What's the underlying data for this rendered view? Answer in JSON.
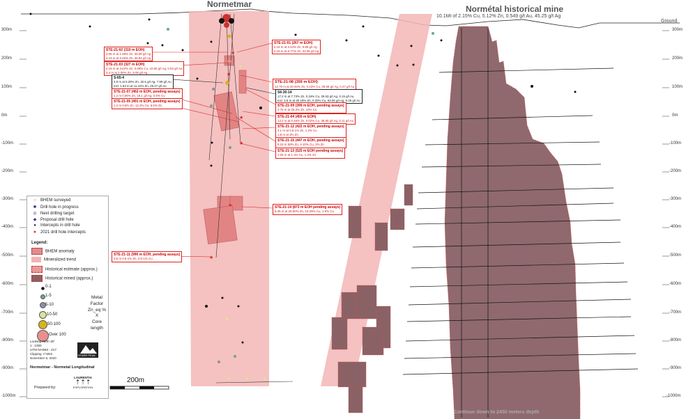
{
  "titles": {
    "main_left": "Normetmar",
    "main_right": "Normétal historical mine",
    "right_sub": "10.1Mt of 2.15% Cu, 5.12% Zn, 0.549 g/t Au, 45.25 g/t Ag",
    "ground": "Ground",
    "bottom_note": "Continue down to 2450 meters depth"
  },
  "depth_labels_left": [
    "300m",
    "200m",
    "100m",
    "0m",
    "-100m",
    "-200m",
    "-300m",
    "-400m",
    "-500m",
    "-600m",
    "-700m",
    "-800m",
    "-900m",
    "-1000m"
  ],
  "depth_labels_right": [
    "300m",
    "200m",
    "100m",
    "0m",
    "-100m",
    "-200m",
    "-300m",
    "-400m",
    "-500m",
    "-600m",
    "-700m",
    "-800m",
    "-900m",
    "-1000m"
  ],
  "callouts": [
    {
      "id": "ste-21-02",
      "title": "STE-21-02 (319 m EOH)",
      "lines": [
        "3.05 m at 1.08% Zn, 36.08 g/t Ag",
        "4.15 m at 3.45% Zn, 35.84 g/t Ag"
      ]
    },
    {
      "id": "ste-21-01",
      "title": "STE-21-01 (267 m EOH)",
      "lines": [
        "4.15 m at 3.43% Zn, 9.88 g/t Ag",
        "4.15 m at 8.77% Zn, 32.05 g/t Ag"
      ]
    },
    {
      "id": "ste-21-03",
      "title": "STE-21-03 (327 m EOH)",
      "lines": [
        "4.15 m at 3.62% Zn, 0.08% Cu, 10.60 g/t Ag, 0.53 g/t Au",
        "3.3 m at 2.00% Zn, 8.05 g/t Ag"
      ]
    },
    {
      "id": "s-65-4",
      "title": "S-65-4",
      "lines": [
        "4.9 m at 5.28% Zn, 32.6 g/t Ag, 7.99 g/t Au",
        "Incl. 1.53 m at 11.41% Zn, 25.27 g/t Au"
      ]
    },
    {
      "id": "ste-21-08",
      "title": "STE-21-08 (359 m EOH)",
      "lines": [
        "12.76 m at 20.94% Zn, 0.43% Cu, 28.56 g/t Ag, 0.27 g/t Au"
      ]
    },
    {
      "id": "ste-21-07",
      "title": "STE-21-07 (462 m EOH, pending assays)",
      "lines": [
        "1.2 m 0.06% Zn, 18.1 g/t Ag, 0.6% Cu"
      ]
    },
    {
      "id": "s6-30-14",
      "title": "S6-30-14",
      "lines": [
        "17.2 m at 7.73% Zn, 0.16% Cu, 29.53 g/t Ag, 0.15 g/t Au",
        "Incl. 4.5 m at 20.18% Zn, 0.33% Cu, 63.06 g/t Ag, 0.25 g/t Au"
      ]
    },
    {
      "id": "ste-21-05",
      "title": "STE-21-05 (491 m EOH, pending assays)",
      "lines": [
        "1.2 m 0.5% Zn, 12.2% Cu, 6.5% Zn"
      ]
    },
    {
      "id": "ste-21-09",
      "title": "STE-21-09 (399 m EOH, pending assays)",
      "lines": [
        "2.75 m at 25.3% Zn, 15% Cu"
      ]
    },
    {
      "id": "ste-21-04",
      "title": "STE-21-04 (450 m EOH)",
      "lines": [
        "13.2 m at 0.46% Zn, 0.02% Cu, 38.55 g/t Ag, 0.11 g/t Au"
      ]
    },
    {
      "id": "ste-21-12",
      "title": "STE-21-12 (422 m EOH, pending assays)",
      "lines": [
        "4.1 m at 0.5-1% Zn, 1.2% Cu",
        "1.8 m at 3% Zn"
      ]
    },
    {
      "id": "ste-21-15",
      "title": "STE-21-15 (447 m EOH, pending assays)",
      "lines": [
        "8.15 m 50% Zn, 4-10% Cu, 3% Zn"
      ]
    },
    {
      "id": "ste-21-13",
      "title": "STE-21-13 (525 m EOH pending assays)",
      "lines": [
        "2.05 m at 1.3% Cu, 1.2% Zn"
      ]
    },
    {
      "id": "ste-21-14",
      "title": "STE-21-14 (873 m EOH pending assays)",
      "lines": [
        "8.35 m at 25-50% Zn, 10-25% Cu, 1-5% Cu"
      ]
    },
    {
      "id": "ste-21-11",
      "title": "STE-21-11 (990 m EOH, pending assays)",
      "lines": [
        "0.5 m 0.5-1% Zn, 0.5-1% Cu"
      ]
    }
  ],
  "legend": {
    "symbols": [
      {
        "label": "BHEM surveyed",
        "glyph": "○",
        "color": "#d33"
      },
      {
        "label": "Drill hole in progress",
        "glyph": "✱",
        "color": "#226"
      },
      {
        "label": "Next drilling target",
        "glyph": "◎",
        "color": "#336"
      },
      {
        "label": "Proposal drill hole",
        "glyph": "◆",
        "color": "#33a"
      },
      {
        "label": "Intercepts in drill hole",
        "glyph": "●",
        "color": "#222"
      },
      {
        "label": "2021 drill hole intercepts",
        "glyph": "★",
        "color": "#d22"
      }
    ],
    "heading": "Legend:",
    "areas": [
      {
        "label": "BHEM anomaly",
        "fill": "#e58a8a"
      },
      {
        "label": "Mineralized trend",
        "fill": "#f2b3b3"
      },
      {
        "label": "Historical estimate (approx.)",
        "fill": "#e79a9a"
      },
      {
        "label": "Historical mined (approx.)",
        "fill": "#8a6266"
      }
    ],
    "metal_factor": [
      {
        "label": "0-1",
        "color": "#111111"
      },
      {
        "label": "1-5",
        "color": "#6fa58f"
      },
      {
        "label": "5-10",
        "color": "#8c8fa8"
      },
      {
        "label": "10-50",
        "color": "#dfe09a"
      },
      {
        "label": "50-100",
        "color": "#d8b219"
      },
      {
        "label": "Over 100",
        "color": "#e98f8f"
      }
    ],
    "metal_factor_caption": [
      "Metal Factor",
      "Zn_eq %",
      "X",
      "Core length"
    ],
    "info_lines": [
      "Looking earth 30°",
      "1 : 1000",
      "UTM NAD83 - Z17",
      "Clipping +/-50m",
      "November 6, 2020"
    ],
    "logo_text": "STARR PEAK",
    "footer_title": "Normetmar - Normetal Longitudinal",
    "prepared_by": "Prepared by:",
    "laurentia": "LAURENTIA",
    "exploration": "EXPLORATION"
  },
  "scalebar": {
    "label": "200m"
  },
  "colors": {
    "trend": "#f3b6b6",
    "anomaly": "#e07a7a",
    "mined": "#8a6266",
    "callout_border": "#d22222"
  }
}
